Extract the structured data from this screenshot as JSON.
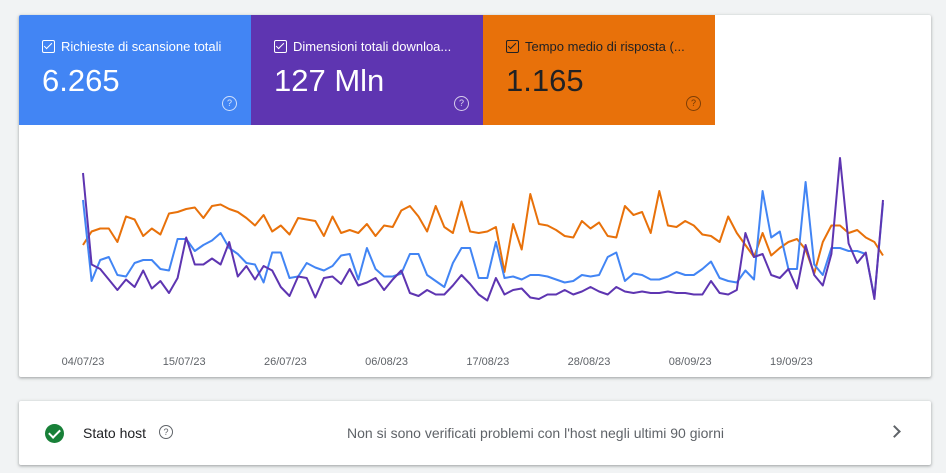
{
  "metrics": [
    {
      "label": "Richieste di scansione totali",
      "value": "6.265",
      "color": "#4285f4"
    },
    {
      "label": "Dimensioni totali downloa...",
      "value": "127 Mln",
      "color": "#5e35b1"
    },
    {
      "label": "Tempo medio di risposta (...",
      "value": "1.165",
      "color": "#e8710a"
    }
  ],
  "help_glyph": "?",
  "chart_data": {
    "type": "line",
    "x_tick_labels": [
      "04/07/23",
      "15/07/23",
      "26/07/23",
      "06/08/23",
      "17/08/23",
      "28/08/23",
      "08/09/23",
      "19/09/23"
    ],
    "series": [
      {
        "color": "#4285f4",
        "values": [
          80,
          26,
          40,
          42,
          30,
          29,
          38,
          40,
          40,
          34,
          33,
          54,
          54,
          46,
          50,
          53,
          58,
          48,
          44,
          38,
          37,
          25,
          45,
          45,
          28,
          29,
          38,
          35,
          33,
          36,
          43,
          44,
          27,
          48,
          34,
          29,
          29,
          31,
          44,
          44,
          30,
          26,
          22,
          38,
          48,
          48,
          28,
          28,
          52,
          28,
          29,
          27,
          30,
          30,
          29,
          27,
          25,
          26,
          30,
          29,
          30,
          42,
          45,
          26,
          31,
          30,
          27,
          27,
          29,
          32,
          30,
          30,
          34,
          39,
          28,
          26,
          25,
          33,
          27,
          86,
          55,
          59,
          34,
          34,
          92,
          37,
          30,
          48,
          48,
          46,
          46,
          44,
          15,
          78
        ]
      },
      {
        "color": "#5e35b1",
        "values": [
          98,
          37,
          34,
          27,
          20,
          27,
          22,
          33,
          21,
          26,
          18,
          28,
          55,
          37,
          37,
          41,
          37,
          52,
          29,
          36,
          27,
          36,
          33,
          22,
          16,
          29,
          28,
          15,
          28,
          29,
          24,
          34,
          23,
          25,
          28,
          20,
          27,
          33,
          18,
          16,
          20,
          17,
          17,
          23,
          30,
          24,
          17,
          13,
          28,
          17,
          20,
          21,
          15,
          14,
          17,
          17,
          20,
          17,
          19,
          22,
          19,
          17,
          22,
          19,
          18,
          19,
          18,
          18,
          19,
          18,
          18,
          17,
          17,
          26,
          18,
          17,
          20,
          58,
          42,
          44,
          30,
          28,
          34,
          21,
          50,
          30,
          23,
          44,
          108,
          51,
          38,
          45,
          14,
          80
        ]
      },
      {
        "color": "#e8710a",
        "values": [
          50,
          59,
          61,
          61,
          52,
          69,
          67,
          56,
          61,
          57,
          71,
          72,
          74,
          75,
          68,
          76,
          77,
          74,
          72,
          68,
          63,
          70,
          59,
          63,
          57,
          68,
          67,
          66,
          56,
          69,
          58,
          60,
          58,
          64,
          56,
          63,
          62,
          73,
          76,
          69,
          59,
          76,
          62,
          58,
          79,
          59,
          58,
          59,
          62,
          32,
          64,
          47,
          84,
          64,
          63,
          60,
          56,
          55,
          66,
          61,
          65,
          56,
          55,
          76,
          70,
          72,
          58,
          86,
          63,
          62,
          66,
          63,
          57,
          56,
          52,
          69,
          58,
          50,
          42,
          58,
          43,
          48,
          52,
          54,
          47,
          31,
          52,
          63,
          63,
          58,
          60,
          55,
          52,
          43
        ]
      }
    ]
  },
  "host": {
    "title": "Stato host",
    "message": "Non si sono verificati problemi con l'host negli ultimi 90 giorni"
  }
}
